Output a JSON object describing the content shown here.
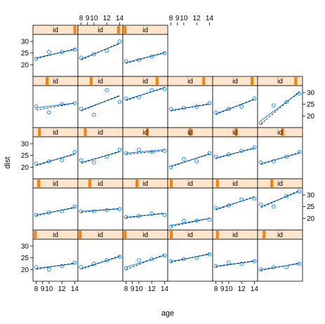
{
  "chart_data": {
    "type": "scatter",
    "layout": "lattice",
    "xlabel": "age",
    "ylabel": "dist",
    "x": [
      8,
      10,
      12,
      14
    ],
    "xticks": [
      "8",
      "9",
      "10",
      "12",
      "14"
    ],
    "yticks": [
      "20",
      "25",
      "30"
    ],
    "xlim": [
      7.5,
      14.5
    ],
    "ylim": [
      15,
      33
    ],
    "strip_label": "id",
    "colors": {
      "points": "#0080ff",
      "strip": "#ffe5cc",
      "strip_marker": "#ff7f00",
      "dashed_fit": "#000000"
    },
    "panels": [
      {
        "row": 1,
        "col": 1,
        "strip": 0.96,
        "values": [
          22.5,
          25.5,
          25.5,
          26.5
        ],
        "fit": [
          23,
          26.5
        ]
      },
      {
        "row": 1,
        "col": 2,
        "strip": 0.93,
        "values": [
          23,
          24.5,
          26,
          30
        ],
        "fit": [
          22.5,
          29
        ]
      },
      {
        "row": 1,
        "col": 3,
        "strip": 0.02,
        "values": [
          21.5,
          22,
          23.5,
          25
        ],
        "fit": [
          21,
          25
        ]
      },
      {
        "row": 2,
        "col": 1,
        "strip": 0.3,
        "values": [
          24,
          21.5,
          25,
          25.5
        ],
        "fit": [
          23.5,
          25.5
        ],
        "dash": [
          22.5,
          25.5
        ]
      },
      {
        "row": 2,
        "col": 2,
        "strip": 0.28,
        "values": [
          23,
          20.5,
          31,
          26
        ],
        "fit": [
          22.5,
          28.5
        ]
      },
      {
        "row": 2,
        "col": 3,
        "strip": 0.78,
        "values": [
          27.5,
          28,
          31,
          31.5
        ],
        "fit": [
          27,
          32
        ]
      },
      {
        "row": 2,
        "col": 4,
        "strip": 0.82,
        "values": [
          23,
          23.5,
          24,
          25.5
        ],
        "fit": [
          22.5,
          25
        ]
      },
      {
        "row": 2,
        "col": 5,
        "strip": 0.9,
        "values": [
          21.5,
          23,
          24,
          27.5
        ],
        "fit": [
          21,
          27
        ]
      },
      {
        "row": 2,
        "col": 6,
        "strip": 0.87,
        "values": [
          17,
          24.5,
          26,
          29.5
        ],
        "fit": [
          18,
          30
        ],
        "dash": [
          16.5,
          30.5
        ]
      },
      {
        "row": 3,
        "col": 1,
        "strip": 0.12,
        "values": [
          21.5,
          22.5,
          23,
          26.5
        ],
        "fit": [
          21,
          25.5
        ]
      },
      {
        "row": 3,
        "col": 2,
        "strip": 0.14,
        "values": [
          23,
          22,
          24.5,
          27.5
        ],
        "fit": [
          22,
          26.5
        ]
      },
      {
        "row": 3,
        "col": 3,
        "strip": 0.55,
        "values": [
          26,
          27.5,
          26.5,
          27
        ],
        "fit": [
          26,
          27.5
        ],
        "dash": [
          25.5,
          27
        ]
      },
      {
        "row": 3,
        "col": 4,
        "strip": 0.5,
        "values": [
          20,
          23.5,
          22.5,
          26
        ],
        "fit": [
          20.5,
          25.5
        ]
      },
      {
        "row": 3,
        "col": 5,
        "strip": 0.52,
        "values": [
          24.5,
          25.5,
          27,
          28.5
        ],
        "fit": [
          24,
          28
        ]
      },
      {
        "row": 3,
        "col": 6,
        "strip": 0.56,
        "values": [
          22,
          22.5,
          24.5,
          26.5
        ],
        "fit": [
          21.5,
          26
        ]
      },
      {
        "row": 4,
        "col": 1,
        "strip": 0.1,
        "values": [
          21.5,
          22.5,
          23,
          25
        ],
        "fit": [
          21.5,
          24.5
        ]
      },
      {
        "row": 4,
        "col": 2,
        "strip": 0.25,
        "values": [
          23,
          23,
          23.5,
          24
        ],
        "fit": [
          23,
          24
        ]
      },
      {
        "row": 4,
        "col": 3,
        "strip": 0.3,
        "values": [
          20.5,
          21,
          22,
          21.5
        ],
        "fit": [
          20.5,
          22
        ]
      },
      {
        "row": 4,
        "col": 4,
        "strip": 0.05,
        "values": [
          16.5,
          19,
          19,
          19.5
        ],
        "fit": [
          17,
          20
        ],
        "dash": [
          16.5,
          20
        ]
      },
      {
        "row": 4,
        "col": 5,
        "strip": 0.08,
        "values": [
          24.5,
          25.5,
          28,
          28.5
        ],
        "fit": [
          24,
          29
        ]
      },
      {
        "row": 4,
        "col": 6,
        "strip": 0.3,
        "values": [
          26,
          25,
          29.5,
          31.5
        ],
        "fit": [
          25,
          31.5
        ],
        "dash": [
          24.5,
          32
        ]
      },
      {
        "row": 5,
        "col": 1,
        "strip": 0.02,
        "values": [
          21,
          20,
          21.5,
          23
        ],
        "fit": [
          20.5,
          22.5
        ]
      },
      {
        "row": 5,
        "col": 2,
        "strip": 0.02,
        "values": [
          21,
          22.5,
          24,
          25.5
        ],
        "fit": [
          20.5,
          25.5
        ]
      },
      {
        "row": 5,
        "col": 3,
        "strip": 0.02,
        "values": [
          20.5,
          24,
          24.5,
          26
        ],
        "fit": [
          21,
          26
        ],
        "dash": [
          20,
          26.5
        ]
      },
      {
        "row": 5,
        "col": 4,
        "strip": 0.05,
        "values": [
          23.5,
          24.5,
          25,
          26.5
        ],
        "fit": [
          23.5,
          26.5
        ]
      },
      {
        "row": 5,
        "col": 5,
        "strip": 0.08,
        "values": [
          21.5,
          23,
          22.5,
          23.5
        ],
        "fit": [
          21.5,
          23.5
        ]
      },
      {
        "row": 5,
        "col": 6,
        "strip": 0.12,
        "values": [
          20,
          21,
          21,
          22.5
        ],
        "fit": [
          20,
          22.5
        ]
      }
    ]
  }
}
